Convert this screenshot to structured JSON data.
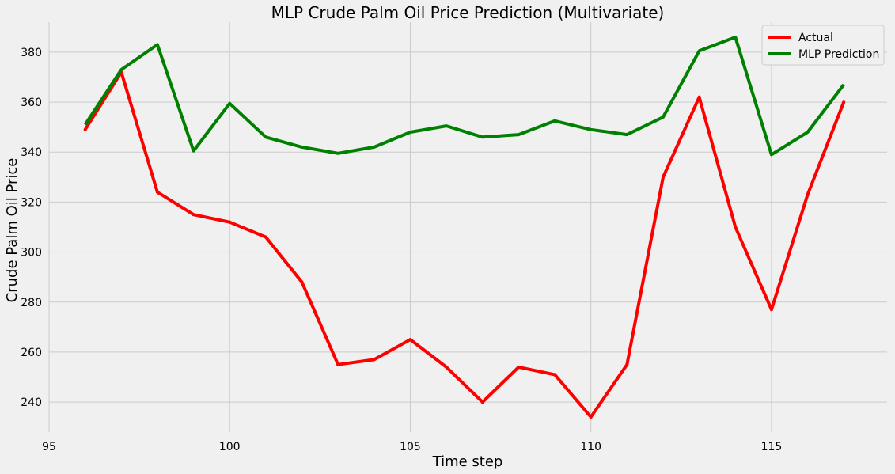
{
  "chart_data": {
    "type": "line",
    "title": "MLP Crude Palm Oil Price Prediction (Multivariate)",
    "xlabel": "Time step",
    "ylabel": "Crude Palm Oil Price",
    "xlim": [
      95,
      118.2
    ],
    "ylim": [
      228,
      392
    ],
    "xticks": [
      95,
      100,
      105,
      110,
      115
    ],
    "yticks": [
      240,
      260,
      280,
      300,
      320,
      340,
      360,
      380
    ],
    "grid": true,
    "legend": "top-right",
    "x": [
      96,
      97,
      98,
      99,
      100,
      101,
      102,
      103,
      104,
      105,
      106,
      107,
      108,
      109,
      110,
      111,
      112,
      113,
      114,
      115,
      116,
      117
    ],
    "series": [
      {
        "name": "Actual",
        "color": "#ff0000",
        "values": [
          349,
          372,
          324,
          315,
          312,
          306,
          288,
          255,
          257,
          265,
          254,
          240,
          254,
          251,
          234,
          255,
          330,
          362,
          310,
          277,
          323,
          360
        ]
      },
      {
        "name": "MLP Prediction",
        "color": "#008000",
        "values": [
          351,
          373,
          383,
          340.5,
          359.5,
          346,
          342,
          339.5,
          342,
          348,
          350.5,
          346,
          347,
          352.5,
          349,
          347,
          354,
          380.5,
          386,
          339,
          348,
          367
        ]
      }
    ]
  }
}
